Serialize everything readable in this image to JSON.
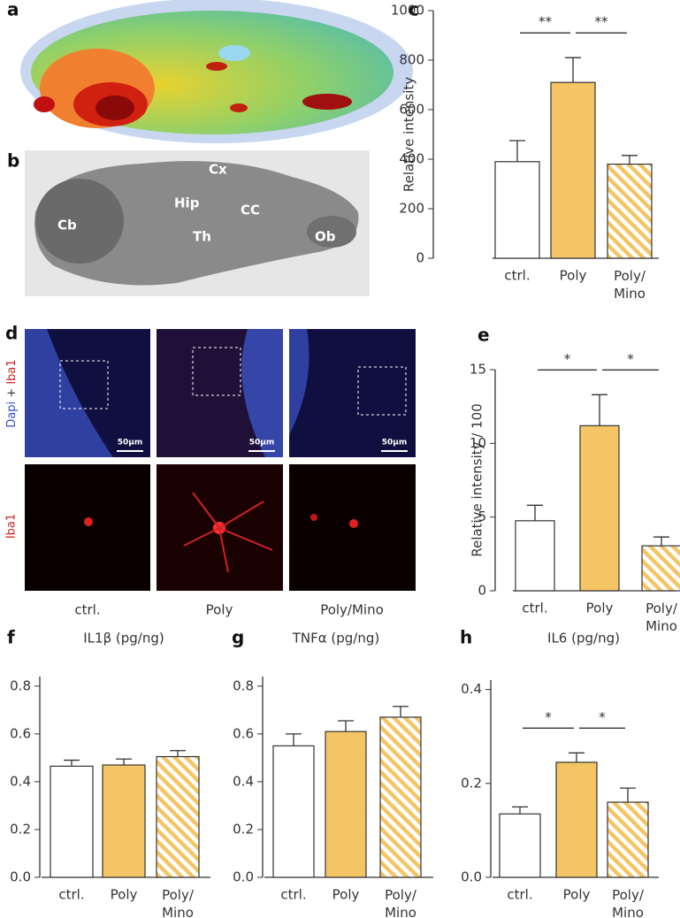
{
  "figure": {
    "panel_a": "a",
    "panel_b": "b",
    "panel_d": "d",
    "regions": {
      "cx": "Cx",
      "hip": "Hip",
      "cc": "CC",
      "th": "Th",
      "cb": "Cb",
      "ob": "Ob"
    },
    "stain_dapi": "Dapi",
    "stain_plus": "+",
    "stain_iba1": "Iba1",
    "row2_label": "Iba1",
    "scale_bars": [
      "50µm",
      "50µm",
      "50µm"
    ],
    "columns": [
      "ctrl.",
      "Poly",
      "Poly/Mino"
    ]
  },
  "chart_data": [
    {
      "type": "bar",
      "panel": "c",
      "y_label": "Relative intensity",
      "categories": [
        "ctrl.",
        "Poly",
        "Poly/\nMino"
      ],
      "values": [
        390,
        710,
        380
      ],
      "errors": [
        85,
        100,
        35
      ],
      "colors": [
        "#ffffff",
        "#f3c565",
        "#f3c565"
      ],
      "hatched": [
        false,
        false,
        true
      ],
      "ylim": [
        0,
        1000
      ],
      "yticks": [
        0,
        200,
        400,
        600,
        800,
        1000
      ],
      "significance": [
        {
          "from": 0,
          "to": 1,
          "label": "**"
        },
        {
          "from": 1,
          "to": 2,
          "label": "**"
        }
      ]
    },
    {
      "type": "bar",
      "panel": "e",
      "y_label": "Relative intensity / 100",
      "categories": [
        "ctrl.",
        "Poly",
        "Poly/\nMino"
      ],
      "values": [
        4.75,
        11.2,
        3.05
      ],
      "errors": [
        1.05,
        2.1,
        0.6
      ],
      "colors": [
        "#ffffff",
        "#f3c565",
        "#f3c565"
      ],
      "hatched": [
        false,
        false,
        true
      ],
      "ylim": [
        0,
        15
      ],
      "yticks": [
        0,
        5,
        10,
        15
      ],
      "significance": [
        {
          "from": 0,
          "to": 1,
          "label": "*"
        },
        {
          "from": 1,
          "to": 2,
          "label": "*"
        }
      ]
    },
    {
      "type": "bar",
      "panel": "f",
      "title": "IL1β (pg/ng)",
      "categories": [
        "ctrl.",
        "Poly",
        "Poly/\nMino"
      ],
      "values": [
        0.465,
        0.47,
        0.505
      ],
      "errors": [
        0.025,
        0.025,
        0.025
      ],
      "colors": [
        "#ffffff",
        "#f3c565",
        "#f3c565"
      ],
      "hatched": [
        false,
        false,
        true
      ],
      "ylim": [
        0,
        0.84
      ],
      "yticks": [
        {
          "value": 0,
          "label": "0.0"
        },
        0.2,
        0.4,
        0.6,
        0.8
      ]
    },
    {
      "type": "bar",
      "panel": "g",
      "title": "TNFα (pg/ng)",
      "categories": [
        "ctrl.",
        "Poly",
        "Poly/\nMino"
      ],
      "values": [
        0.55,
        0.61,
        0.67
      ],
      "errors": [
        0.05,
        0.045,
        0.045
      ],
      "colors": [
        "#ffffff",
        "#f3c565",
        "#f3c565"
      ],
      "hatched": [
        false,
        false,
        true
      ],
      "ylim": [
        0,
        0.84
      ],
      "yticks": [
        {
          "value": 0,
          "label": "0.0"
        },
        0.2,
        0.4,
        0.6,
        0.8
      ]
    },
    {
      "type": "bar",
      "panel": "h",
      "title": "IL6 (pg/ng)",
      "categories": [
        "ctrl.",
        "Poly",
        "Poly/\nMino"
      ],
      "values": [
        0.135,
        0.245,
        0.16
      ],
      "errors": [
        0.015,
        0.02,
        0.03
      ],
      "colors": [
        "#ffffff",
        "#f3c565",
        "#f3c565"
      ],
      "hatched": [
        false,
        false,
        true
      ],
      "ylim": [
        0,
        0.42
      ],
      "yticks": [
        {
          "value": 0,
          "label": "0.0"
        },
        0.2,
        0.4
      ],
      "significance": [
        {
          "from": 0,
          "to": 1,
          "label": "*"
        },
        {
          "from": 1,
          "to": 2,
          "label": "*"
        }
      ]
    }
  ]
}
